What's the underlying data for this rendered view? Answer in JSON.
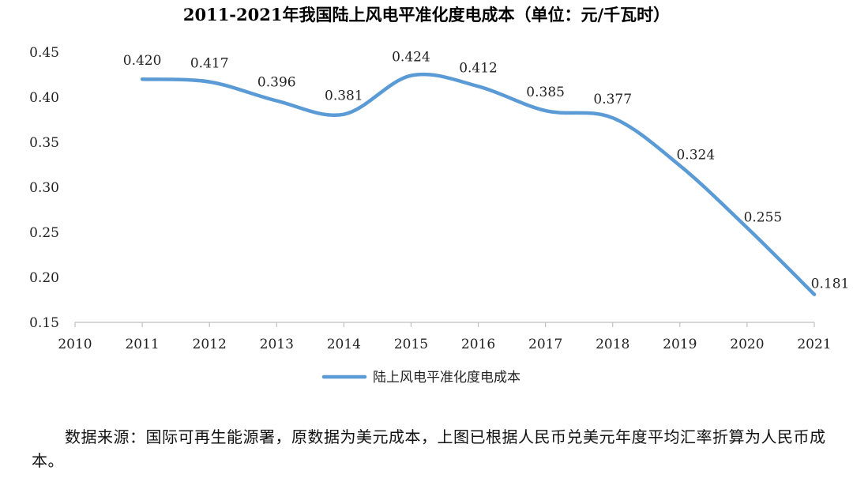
{
  "chart_data": {
    "type": "line",
    "title": "2011-2021年我国陆上风电平准化度电成本（单位：元/千瓦时）",
    "x": [
      2011,
      2012,
      2013,
      2014,
      2015,
      2016,
      2017,
      2018,
      2019,
      2020,
      2021
    ],
    "x_tick_labels": [
      "2010",
      "2011",
      "2012",
      "2013",
      "2014",
      "2015",
      "2016",
      "2017",
      "2018",
      "2019",
      "2020",
      "2021"
    ],
    "xlim": [
      2010,
      2021
    ],
    "ylim": [
      0.15,
      0.45
    ],
    "y_ticks": [
      0.15,
      0.2,
      0.25,
      0.3,
      0.35,
      0.4,
      0.45
    ],
    "y_tick_labels": [
      "0.15",
      "0.20",
      "0.25",
      "0.30",
      "0.35",
      "0.40",
      "0.45"
    ],
    "series": [
      {
        "name": "陆上风电平准化度电成本",
        "values": [
          0.42,
          0.417,
          0.396,
          0.381,
          0.424,
          0.412,
          0.385,
          0.377,
          0.324,
          0.255,
          0.181
        ],
        "value_labels": [
          "0.420",
          "0.417",
          "0.396",
          "0.381",
          "0.424",
          "0.412",
          "0.385",
          "0.377",
          "0.324",
          "0.255",
          "0.181"
        ],
        "color": "#5B9BD5",
        "smooth": true
      }
    ],
    "xlabel": "",
    "ylabel": "",
    "grid": false,
    "legend_position": "bottom-center"
  },
  "source_note": "数据来源：国际可再生能源署，原数据为美元成本，上图已根据人民币兑美元年度平均汇率折算为人民币成本。"
}
